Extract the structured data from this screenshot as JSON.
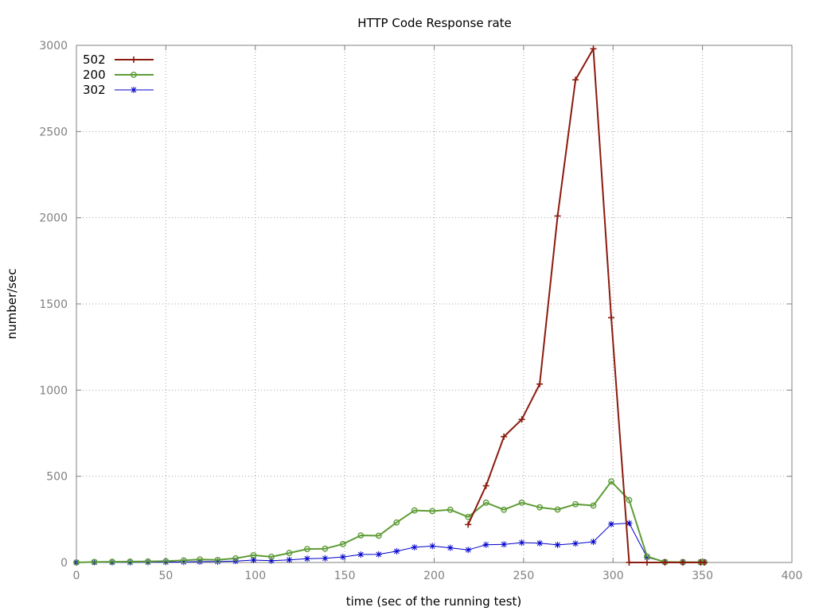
{
  "chart_data": {
    "type": "line",
    "title": "HTTP Code Response rate",
    "xlabel": "time (sec of the running test)",
    "ylabel": "number/sec",
    "xlim": [
      0,
      400
    ],
    "ylim": [
      0,
      3000
    ],
    "xticks": [
      0,
      50,
      100,
      150,
      200,
      250,
      300,
      350,
      400
    ],
    "yticks": [
      0,
      500,
      1000,
      1500,
      2000,
      2500,
      3000
    ],
    "grid": true,
    "legend_position": "top-left",
    "series": [
      {
        "name": "502",
        "color": "#8b1a0e",
        "marker": "plus",
        "points": [
          [
            219,
            220
          ],
          [
            229,
            445
          ],
          [
            239,
            730
          ],
          [
            249,
            830
          ],
          [
            259,
            1035
          ],
          [
            269,
            2010
          ],
          [
            279,
            2800
          ],
          [
            289,
            2980
          ],
          [
            299,
            1420
          ],
          [
            309,
            0
          ],
          [
            319,
            0
          ],
          [
            329,
            0
          ],
          [
            339,
            0
          ],
          [
            349,
            0
          ],
          [
            351,
            0
          ]
        ]
      },
      {
        "name": "200",
        "color": "#5e9c36",
        "marker": "circle",
        "points": [
          [
            0,
            0
          ],
          [
            10,
            3
          ],
          [
            20,
            4
          ],
          [
            30,
            5
          ],
          [
            40,
            6
          ],
          [
            50,
            8
          ],
          [
            60,
            12
          ],
          [
            69,
            18
          ],
          [
            79,
            15
          ],
          [
            89,
            24
          ],
          [
            99,
            42
          ],
          [
            109,
            33
          ],
          [
            119,
            55
          ],
          [
            129,
            78
          ],
          [
            139,
            80
          ],
          [
            149,
            107
          ],
          [
            159,
            157
          ],
          [
            169,
            155
          ],
          [
            179,
            232
          ],
          [
            189,
            302
          ],
          [
            199,
            298
          ],
          [
            209,
            306
          ],
          [
            219,
            264
          ],
          [
            229,
            347
          ],
          [
            239,
            306
          ],
          [
            249,
            347
          ],
          [
            259,
            320
          ],
          [
            269,
            307
          ],
          [
            279,
            338
          ],
          [
            289,
            330
          ],
          [
            299,
            470
          ],
          [
            309,
            362
          ],
          [
            319,
            35
          ],
          [
            329,
            3
          ],
          [
            339,
            2
          ],
          [
            349,
            2
          ],
          [
            351,
            2
          ]
        ]
      },
      {
        "name": "302",
        "color": "#0000cc",
        "marker": "star",
        "points": [
          [
            0,
            0
          ],
          [
            10,
            1
          ],
          [
            20,
            1
          ],
          [
            30,
            1
          ],
          [
            40,
            2
          ],
          [
            50,
            2
          ],
          [
            60,
            3
          ],
          [
            69,
            5
          ],
          [
            79,
            5
          ],
          [
            89,
            8
          ],
          [
            99,
            14
          ],
          [
            109,
            10
          ],
          [
            119,
            15
          ],
          [
            129,
            22
          ],
          [
            139,
            24
          ],
          [
            149,
            32
          ],
          [
            159,
            46
          ],
          [
            169,
            47
          ],
          [
            179,
            65
          ],
          [
            189,
            88
          ],
          [
            199,
            95
          ],
          [
            209,
            85
          ],
          [
            219,
            73
          ],
          [
            229,
            103
          ],
          [
            239,
            105
          ],
          [
            249,
            115
          ],
          [
            259,
            112
          ],
          [
            269,
            102
          ],
          [
            279,
            110
          ],
          [
            289,
            120
          ],
          [
            299,
            222
          ],
          [
            309,
            228
          ],
          [
            319,
            30
          ],
          [
            329,
            3
          ],
          [
            339,
            2
          ],
          [
            349,
            2
          ],
          [
            351,
            2
          ]
        ]
      }
    ]
  }
}
